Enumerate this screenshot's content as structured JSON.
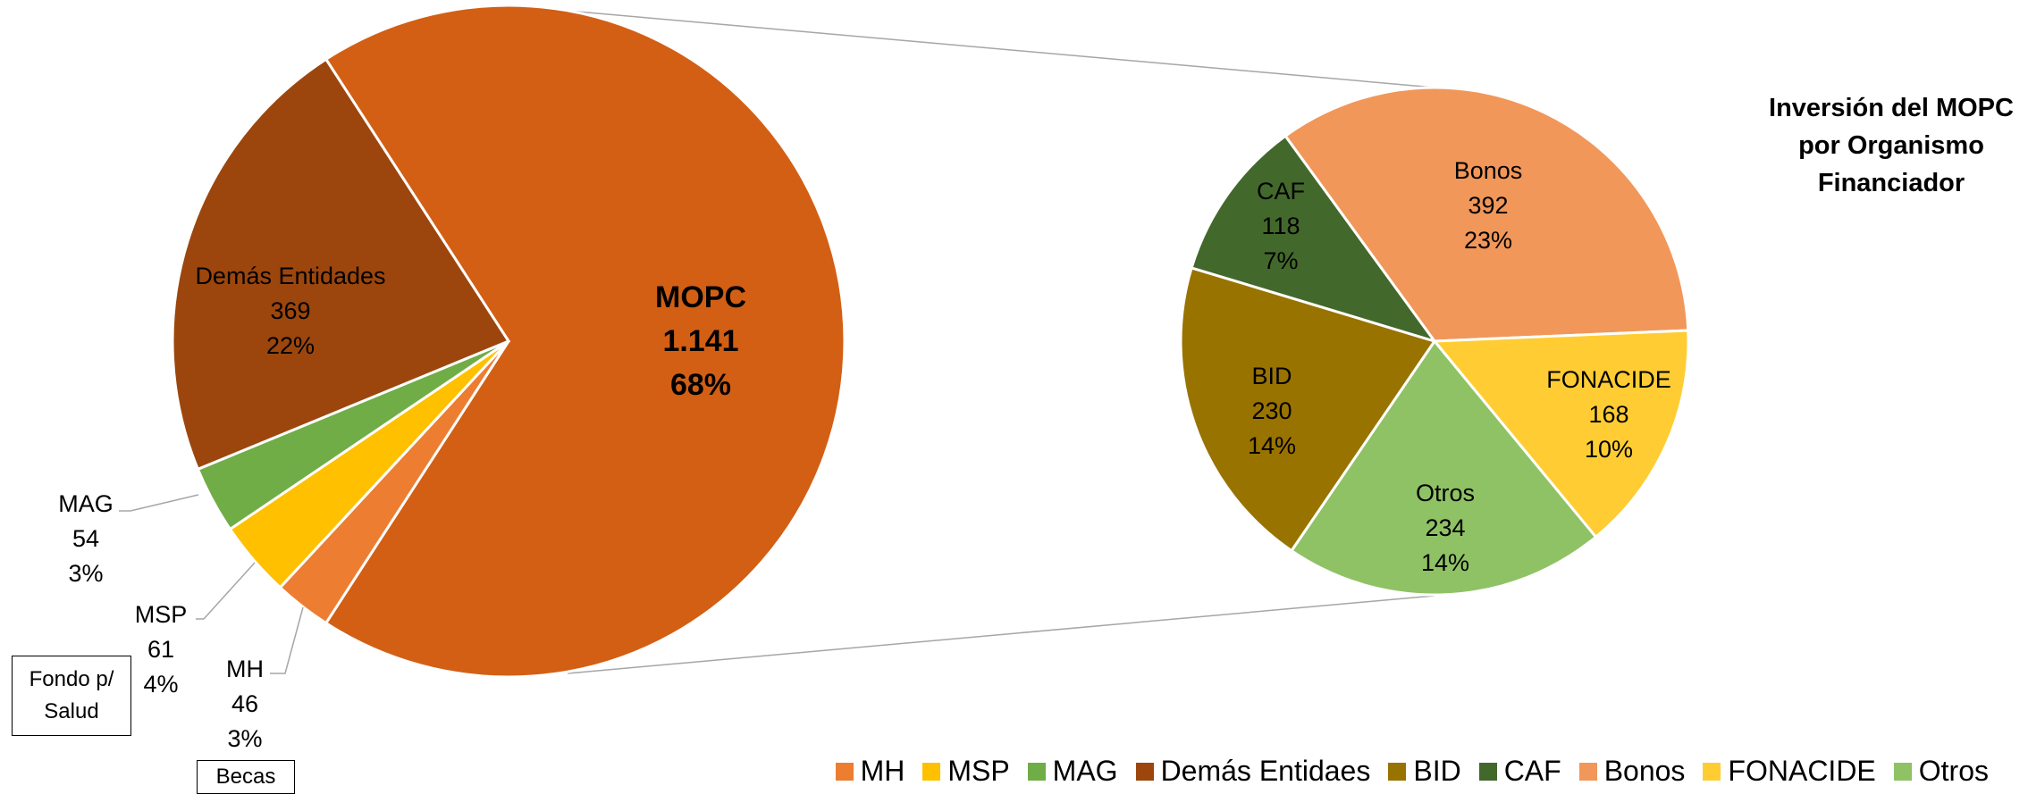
{
  "chart_data": [
    {
      "type": "pie",
      "categories": [
        "MOPC",
        "MH",
        "MSP",
        "MAG",
        "Demás Entidades"
      ],
      "values": [
        1141,
        46,
        61,
        54,
        369
      ],
      "value_labels": [
        "1.141",
        "46",
        "61",
        "54",
        "369"
      ],
      "percents": [
        68,
        3,
        4,
        3,
        22
      ],
      "percent_labels": [
        "68%",
        "3%",
        "4%",
        "3%",
        "22%"
      ],
      "colors": [
        "#D35F14",
        "#ED7D31",
        "#FFC000",
        "#70AD47",
        "#9C460D"
      ]
    },
    {
      "type": "pie",
      "title": "Inversión del MOPC por Organismo Financiador",
      "categories": [
        "Bonos",
        "FONACIDE",
        "Otros",
        "BID",
        "CAF"
      ],
      "values": [
        392,
        168,
        234,
        230,
        118
      ],
      "percents": [
        23,
        10,
        14,
        14,
        7
      ],
      "percent_labels": [
        "23%",
        "10%",
        "14%",
        "14%",
        "7%"
      ],
      "colors": [
        "#F1975A",
        "#FFCD33",
        "#8FC265",
        "#997300",
        "#43682B"
      ]
    }
  ],
  "legend": [
    {
      "name": "MH",
      "color": "#ED7D31"
    },
    {
      "name": "MSP",
      "color": "#FFC000"
    },
    {
      "name": "MAG",
      "color": "#70AD47"
    },
    {
      "name": "Demás Entidaes",
      "color": "#9C460D"
    },
    {
      "name": "BID",
      "color": "#997300"
    },
    {
      "name": "CAF",
      "color": "#43682B"
    },
    {
      "name": "Bonos",
      "color": "#F1975A"
    },
    {
      "name": "FONACIDE",
      "color": "#FFCD33"
    },
    {
      "name": "Otros",
      "color": "#8FC265"
    }
  ],
  "annotations": [
    "Fondo p/ Salud",
    "Becas"
  ]
}
